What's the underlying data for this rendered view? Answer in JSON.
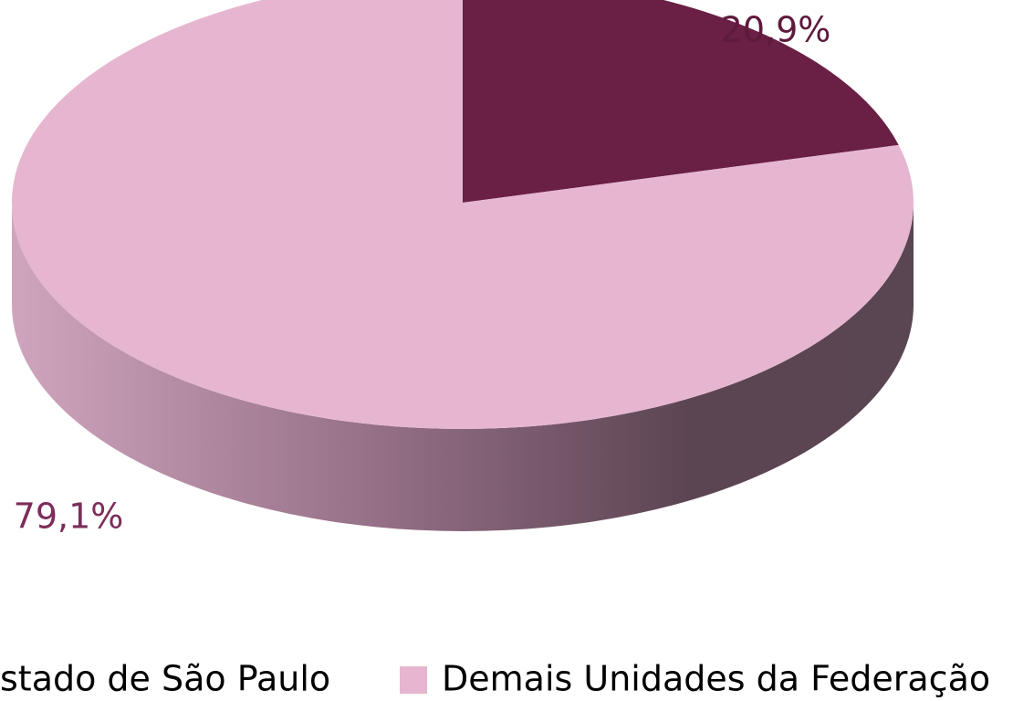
{
  "chart_data": {
    "type": "pie",
    "categories": [
      "stado de São Paulo",
      "Demais Unidades da Federação"
    ],
    "values": [
      20.9,
      79.1
    ],
    "value_labels": [
      "20,9%",
      "79,1%"
    ],
    "colors": [
      "#6a1f45",
      "#e6b6d0"
    ],
    "label_colors": [
      "#5e1a3d",
      "#7d2d5a"
    ]
  }
}
